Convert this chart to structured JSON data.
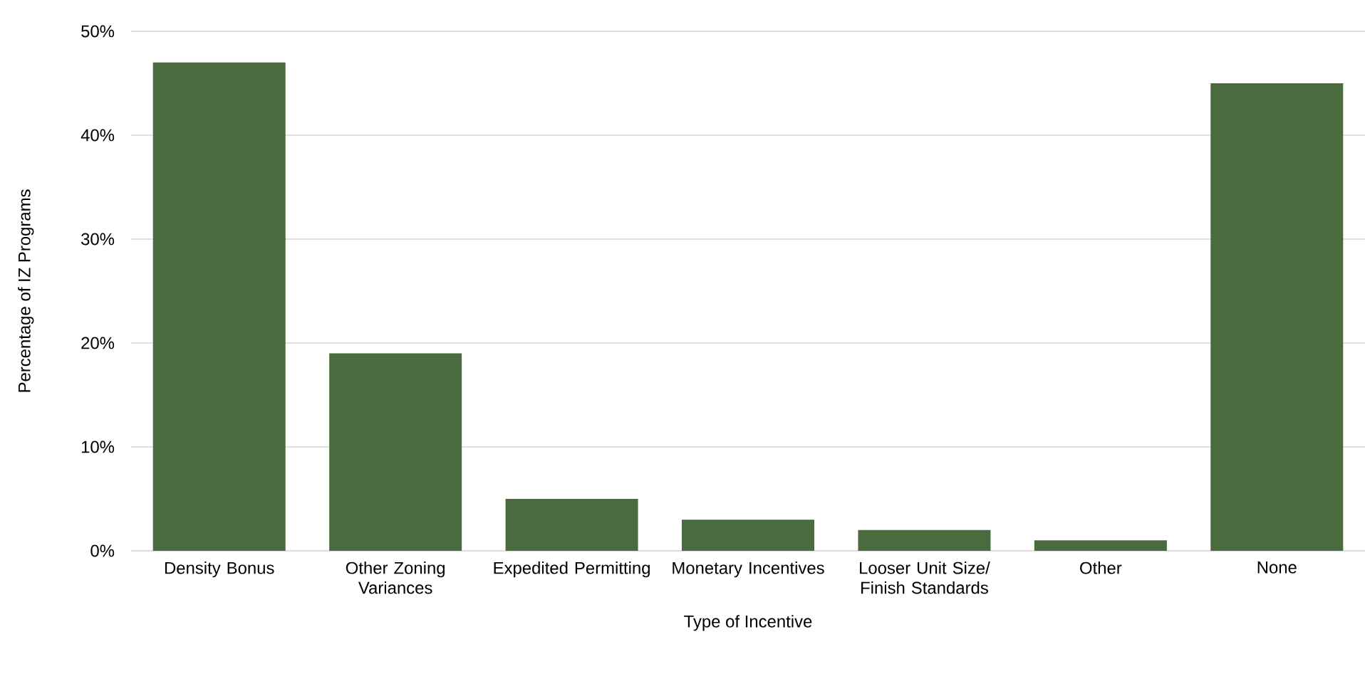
{
  "chart_data": {
    "type": "bar",
    "xlabel": "Type of Incentive",
    "ylabel": "Percentage of IZ Programs",
    "categories": [
      "Density Bonus",
      "Other Zoning Variances",
      "Expedited Permitting",
      "Monetary Incentives",
      "Looser Unit Size/ Finish Standards",
      "Other",
      "None"
    ],
    "values": [
      47,
      19,
      5,
      3,
      2,
      1,
      45
    ],
    "color": "#4a6b3d",
    "ylim": [
      0,
      50
    ],
    "yticks": [
      {
        "value": 0,
        "label": "0%"
      },
      {
        "value": 10,
        "label": "10%"
      },
      {
        "value": 20,
        "label": "20%"
      },
      {
        "value": 30,
        "label": "30%"
      },
      {
        "value": 40,
        "label": "40%"
      },
      {
        "value": 50,
        "label": "50%"
      }
    ],
    "grid": "y"
  }
}
